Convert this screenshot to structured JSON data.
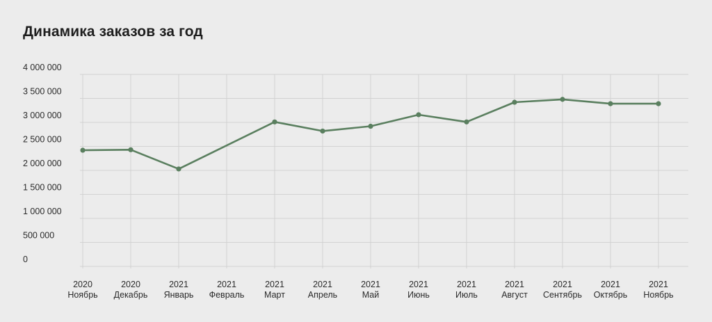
{
  "title": "Динамика заказов за год",
  "chart_data": {
    "type": "line",
    "title": "Динамика заказов за год",
    "xlabel": "",
    "ylabel": "",
    "categories": [
      {
        "year": "2020",
        "month": "Ноябрь"
      },
      {
        "year": "2020",
        "month": "Декабрь"
      },
      {
        "year": "2021",
        "month": "Январь"
      },
      {
        "year": "2021",
        "month": "Февраль"
      },
      {
        "year": "2021",
        "month": "Март"
      },
      {
        "year": "2021",
        "month": "Апрель"
      },
      {
        "year": "2021",
        "month": "Май"
      },
      {
        "year": "2021",
        "month": "Июнь"
      },
      {
        "year": "2021",
        "month": "Июль"
      },
      {
        "year": "2021",
        "month": "Август"
      },
      {
        "year": "2021",
        "month": "Сентябрь"
      },
      {
        "year": "2021",
        "month": "Октябрь"
      },
      {
        "year": "2021",
        "month": "Ноябрь"
      }
    ],
    "series": [
      {
        "values": [
          2420000,
          2430000,
          2030000,
          null,
          3010000,
          2820000,
          2920000,
          3160000,
          3010000,
          3420000,
          3480000,
          3390000,
          3390000
        ],
        "color": "#5a7f5f"
      }
    ],
    "line_bridges_gaps": true,
    "ylim": [
      0,
      4000000
    ],
    "yticks": [
      {
        "value": 0,
        "label": "0"
      },
      {
        "value": 500000,
        "label": "500 000"
      },
      {
        "value": 1000000,
        "label": "1 000 000"
      },
      {
        "value": 1500000,
        "label": "1 500 000"
      },
      {
        "value": 2000000,
        "label": "2 000 000"
      },
      {
        "value": 2500000,
        "label": "2 500 000"
      },
      {
        "value": 3000000,
        "label": "3 000 000"
      },
      {
        "value": 3500000,
        "label": "3 500 000"
      },
      {
        "value": 4000000,
        "label": "4 000 000"
      }
    ],
    "grid": true,
    "legend": "none",
    "colors": {
      "line": "#5a7f5f",
      "grid": "#d2d2d2",
      "background": "#ececec"
    }
  }
}
